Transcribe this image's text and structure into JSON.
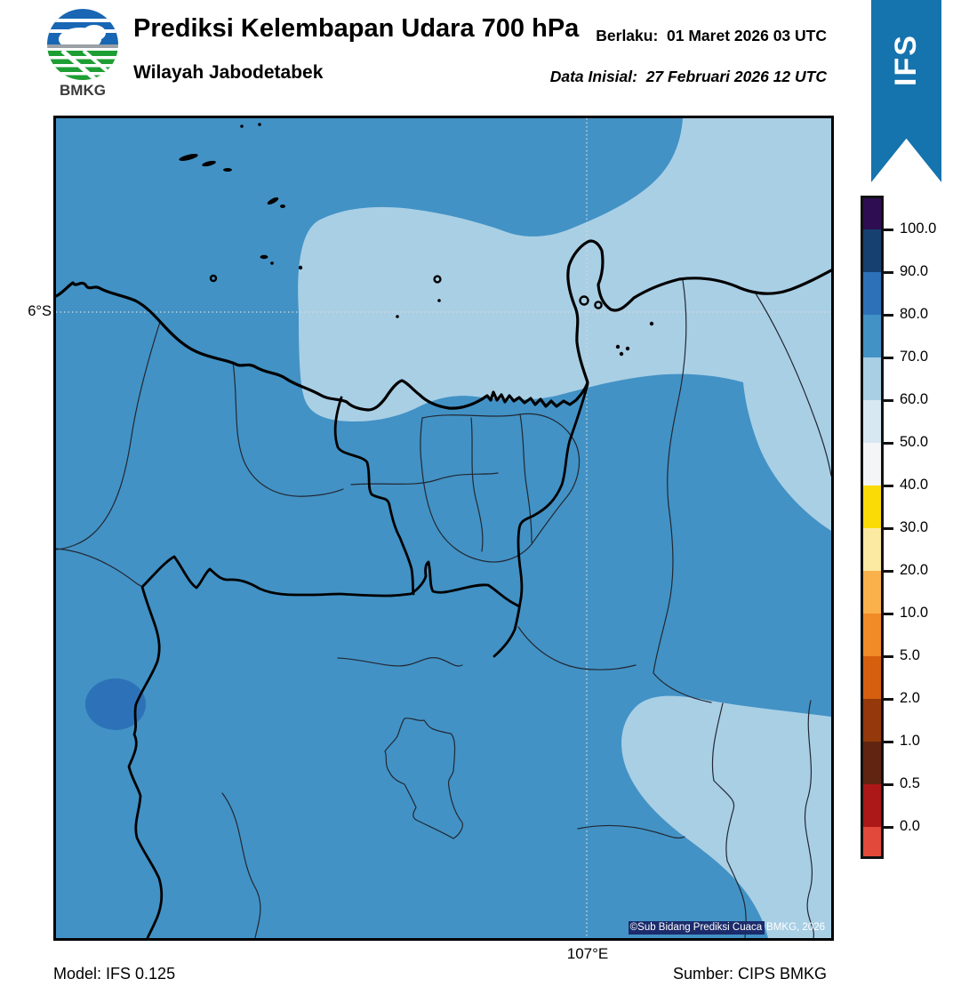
{
  "header": {
    "logo_text": "BMKG",
    "title": "Prediksi Kelembapan Udara 700 hPa",
    "subtitle": "Wilayah Jabodetabek",
    "valid_label": "Berlaku:",
    "valid_value": "01 Maret 2026 03 UTC",
    "init_label": "Data Inisial:",
    "init_value": "27 Februari 2026 12 UTC"
  },
  "ribbon": {
    "label": "IFS"
  },
  "map": {
    "lat_label": "6°S",
    "lon_label": "107°E",
    "copyright_a": "©Sub Bidang Prediksi Cuaca",
    "copyright_b": "BMKG, 2026"
  },
  "colorbar": {
    "tick_labels": [
      "100.0",
      "90.0",
      "80.0",
      "70.0",
      "60.0",
      "50.0",
      "40.0",
      "30.0",
      "20.0",
      "10.0",
      "5.0",
      "2.0",
      "1.0",
      "0.5",
      "0.0"
    ],
    "segment_colors": [
      "#2E0D51",
      "#16406F",
      "#2D72B8",
      "#4292C5",
      "#A9CFE5",
      "#D8E8F3",
      "#F4F5F6",
      "#FBDB06",
      "#FCE9A2",
      "#FAB14C",
      "#F08B28",
      "#D55F0E",
      "#94390B",
      "#5F2511",
      "#AC1818",
      "#E2493A"
    ]
  },
  "footer": {
    "model": "Model: IFS 0.125",
    "source": "Sumber: CIPS BMKG"
  },
  "colors": {
    "map_main": "#4292C5",
    "map_light": "#A9CFE5",
    "map_dark_spot": "#2D72B8",
    "ribbon_blue": "#1573AE",
    "copyright_bg": "#1B2B6B"
  }
}
